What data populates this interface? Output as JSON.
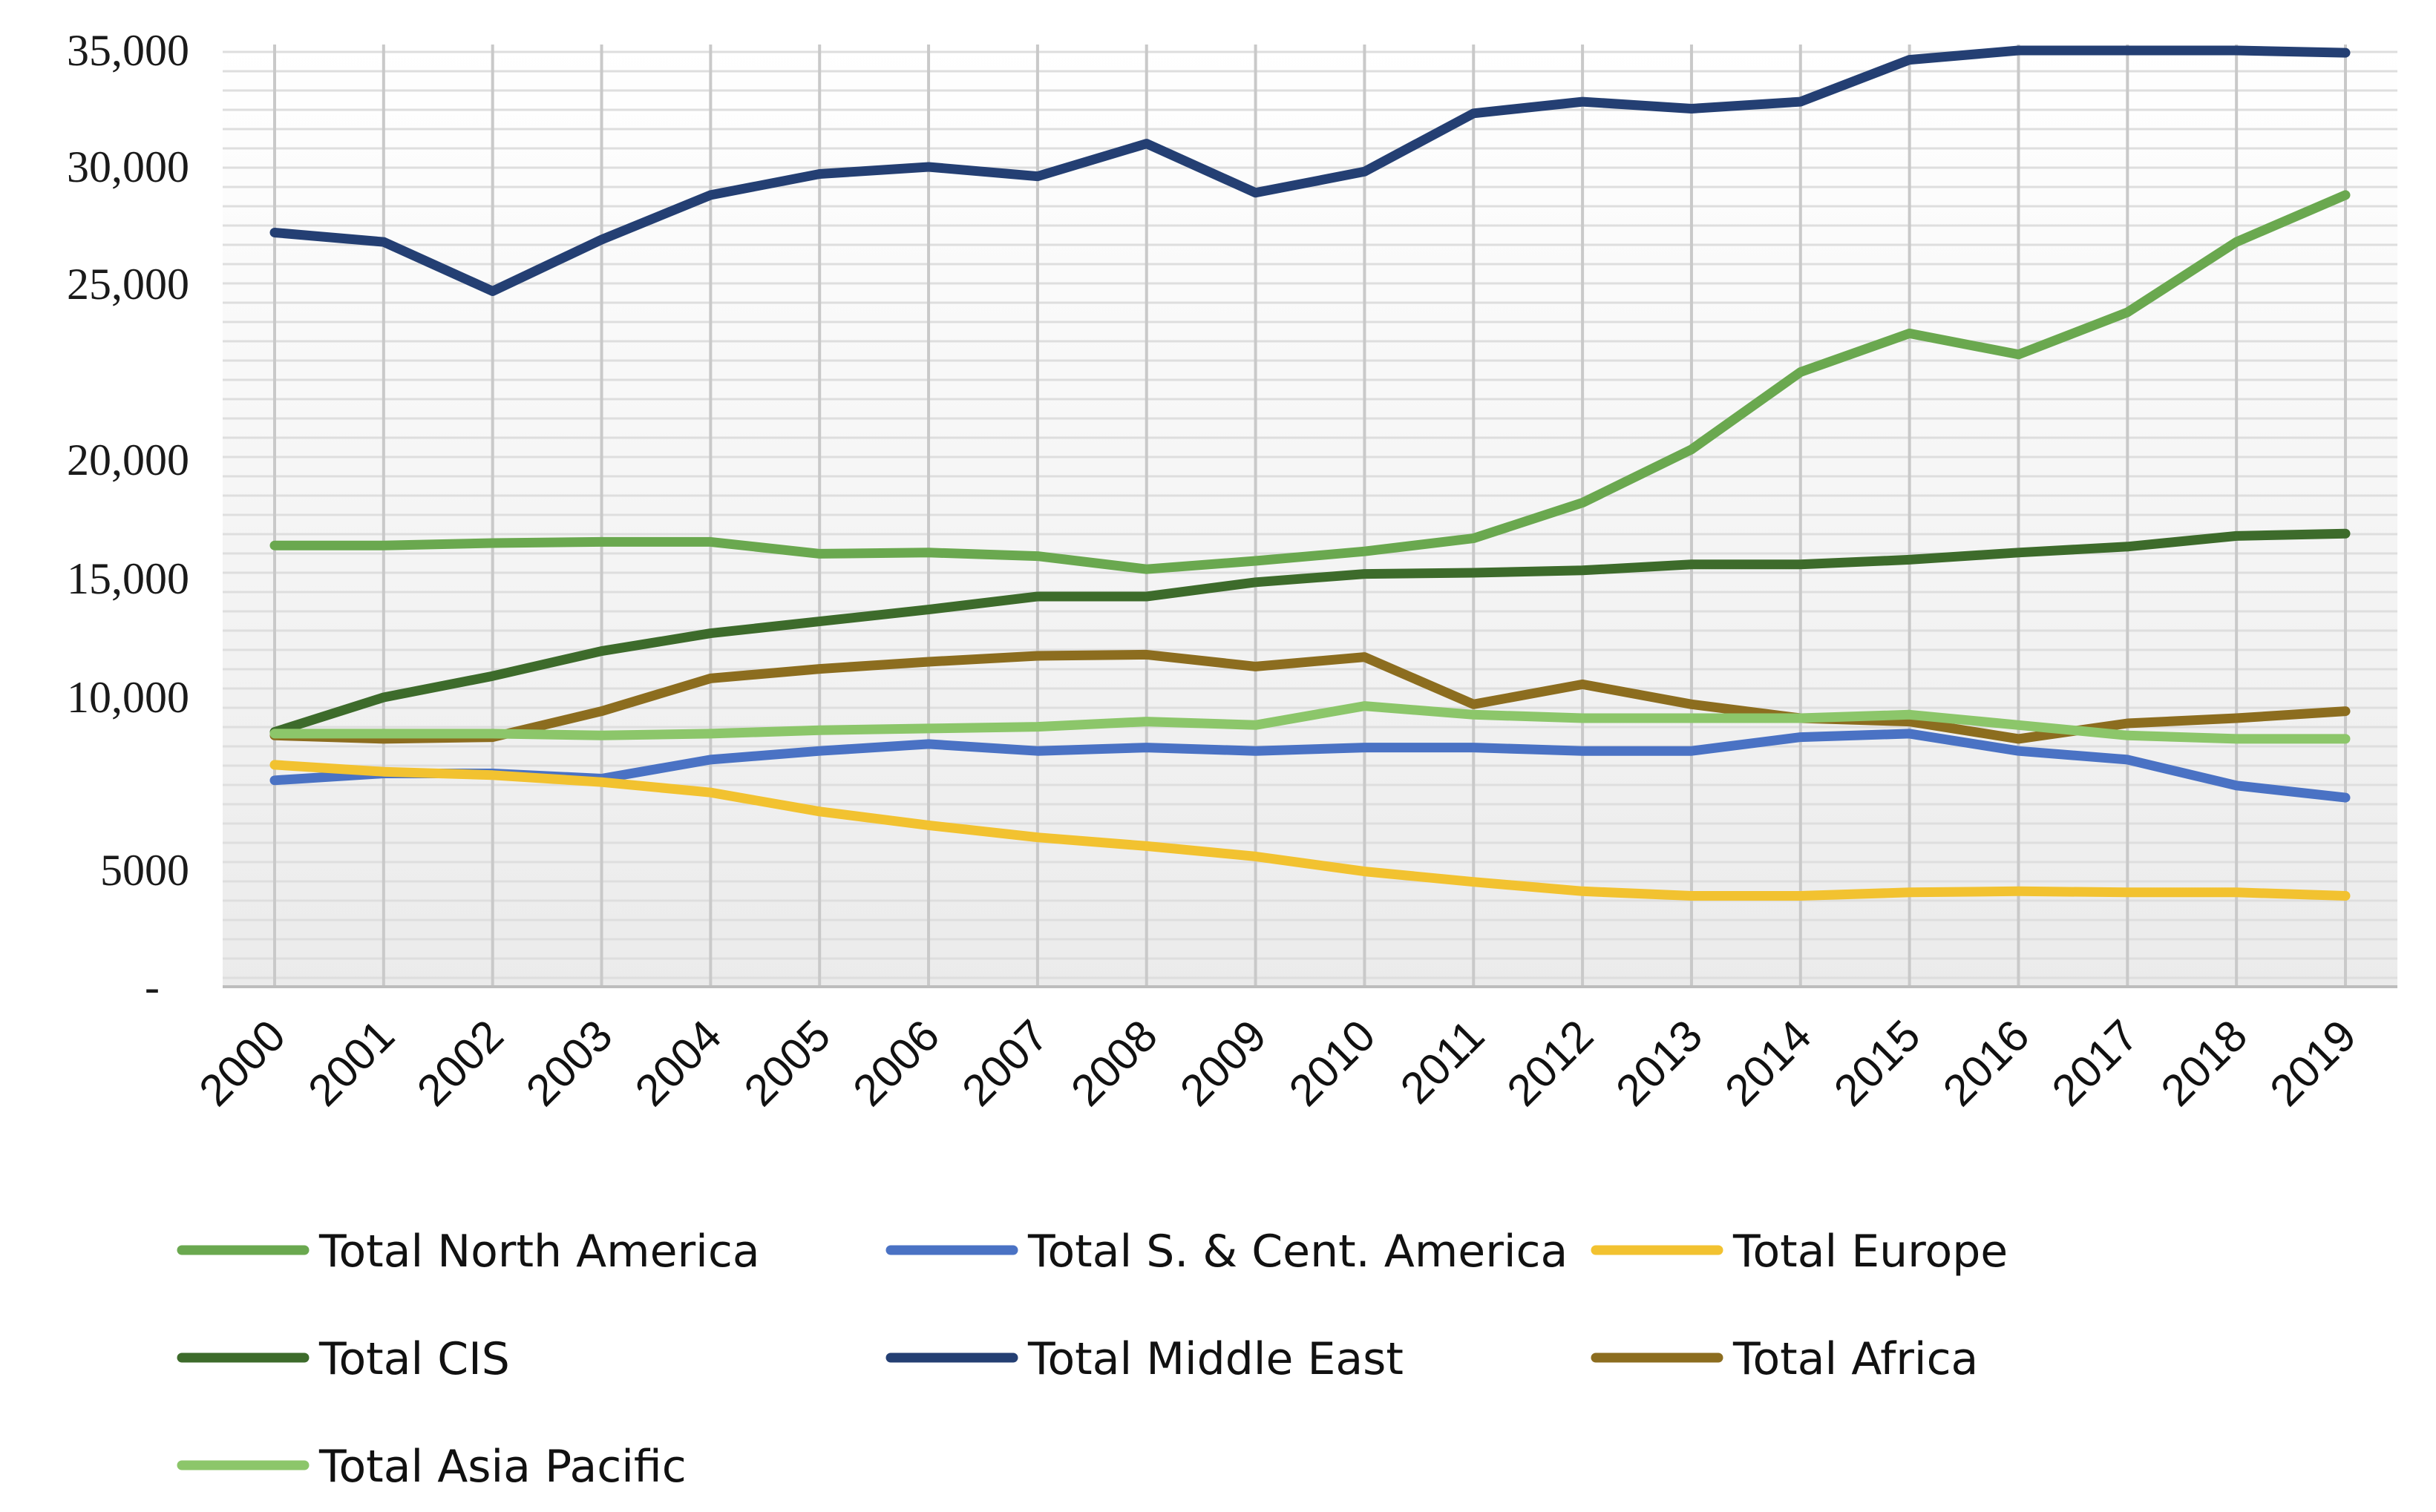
{
  "chart_data": {
    "type": "line",
    "title": "",
    "xlabel": "",
    "ylabel": "",
    "ylim": [
      0,
      35000
    ],
    "yticks": [
      {
        "value": 35000,
        "label": "35,000"
      },
      {
        "value": 30000,
        "label": "30,000"
      },
      {
        "value": 25000,
        "label": "25,000"
      },
      {
        "value": 20000,
        "label": "20,000"
      },
      {
        "value": 15000,
        "label": "15,000"
      },
      {
        "value": 10000,
        "label": "10,000"
      },
      {
        "value": 5000,
        "label": "5000"
      },
      {
        "value": 0,
        "label": "-"
      }
    ],
    "categories": [
      "2000",
      "2001",
      "2002",
      "2003",
      "2004",
      "2005",
      "2006",
      "2007",
      "2008",
      "2009",
      "2010",
      "2011",
      "2012",
      "2013",
      "2014",
      "2015",
      "2016",
      "2017",
      "2018",
      "2019"
    ],
    "grid": true,
    "legend_position": "bottom",
    "series": [
      {
        "name": "Total North America",
        "color": "#6aa84f",
        "values": [
          16400,
          16400,
          16500,
          16550,
          16550,
          16050,
          16100,
          15950,
          15400,
          15750,
          16150,
          16700,
          18200,
          20300,
          22500,
          23600,
          23000,
          24200,
          26800,
          28800
        ]
      },
      {
        "name": "Total S. & Cent. America",
        "color": "#4a72c4",
        "values": [
          7600,
          7800,
          7800,
          7650,
          8200,
          8450,
          8650,
          8450,
          8550,
          8450,
          8550,
          8550,
          8450,
          8450,
          8850,
          8950,
          8450,
          8200,
          7450,
          7100
        ]
      },
      {
        "name": "Total Europe",
        "color": "#f2c230",
        "values": [
          8050,
          7850,
          7750,
          7550,
          7250,
          6700,
          6300,
          5950,
          5700,
          5400,
          4950,
          4500,
          4100,
          3900,
          3900,
          4050,
          4100,
          4050,
          4050,
          3900
        ]
      },
      {
        "name": "Total CIS",
        "color": "#3d6b2b",
        "values": [
          9000,
          10000,
          10900,
          11950,
          12700,
          13200,
          13700,
          14250,
          14250,
          14850,
          15200,
          15250,
          15350,
          15600,
          15600,
          15800,
          16100,
          16350,
          16800,
          16900
        ]
      },
      {
        "name": "Total Middle East",
        "color": "#243f73",
        "values": [
          27200,
          26800,
          24800,
          26900,
          28800,
          29700,
          30000,
          29600,
          31000,
          28900,
          29800,
          32300,
          32800,
          32500,
          32800,
          34600,
          36700,
          36400,
          36600,
          34900
        ]
      },
      {
        "name": "Total Africa",
        "color": "#8c6d1f",
        "values": [
          8900,
          8800,
          8850,
          9600,
          10800,
          11200,
          11500,
          11750,
          11800,
          11300,
          11700,
          9800,
          10550,
          9800,
          9400,
          9300,
          8800,
          9250,
          9400,
          9600
        ]
      },
      {
        "name": "Total Asia Pacific",
        "color": "#8cc66a",
        "values": [
          8950,
          8950,
          8950,
          8900,
          8950,
          9050,
          9100,
          9150,
          9300,
          9200,
          9750,
          9500,
          9400,
          9400,
          9400,
          9500,
          9200,
          8900,
          8800,
          8800
        ]
      }
    ]
  }
}
